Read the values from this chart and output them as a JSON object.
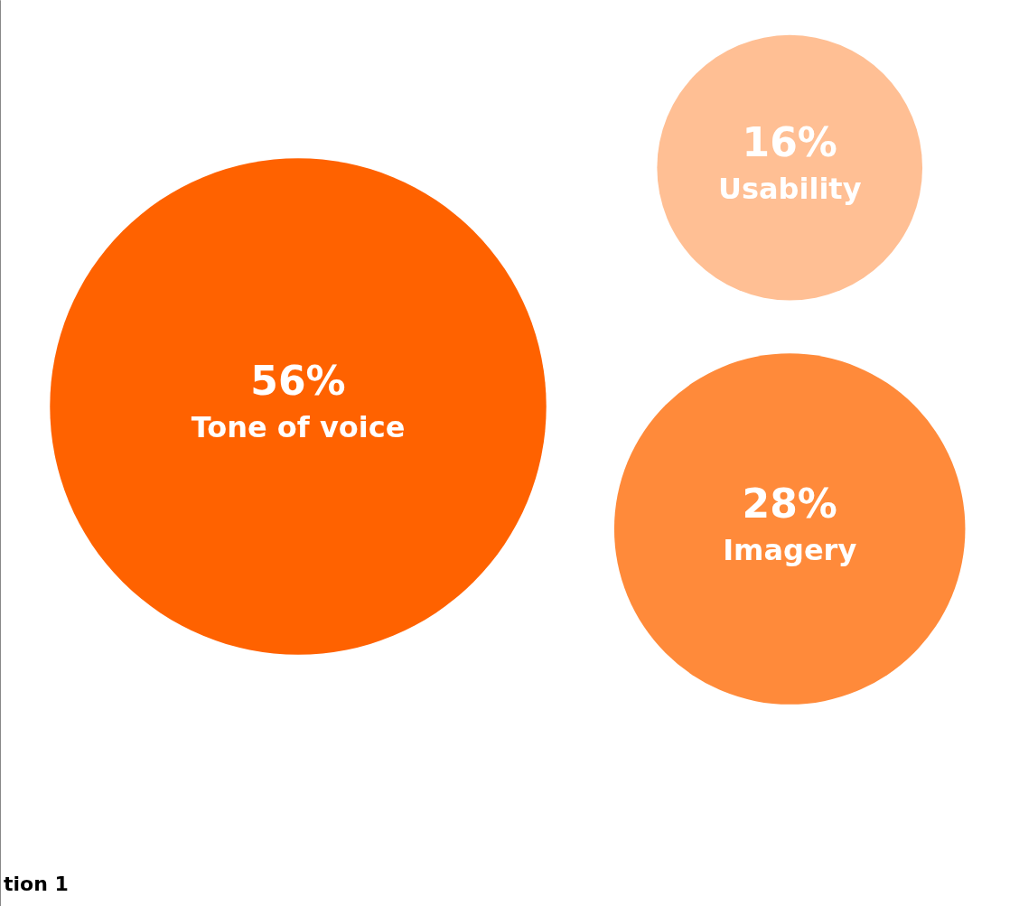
{
  "chart_data": {
    "type": "other",
    "categories": [
      "Tone of voice",
      "Usability",
      "Imagery"
    ],
    "values": [
      56,
      16,
      28
    ],
    "value_labels": [
      "56%",
      "16%",
      "28%"
    ],
    "colors": [
      "#ff6200",
      "#ffbf94",
      "#ff8a3a"
    ],
    "annotations": [
      "tion 1"
    ]
  }
}
